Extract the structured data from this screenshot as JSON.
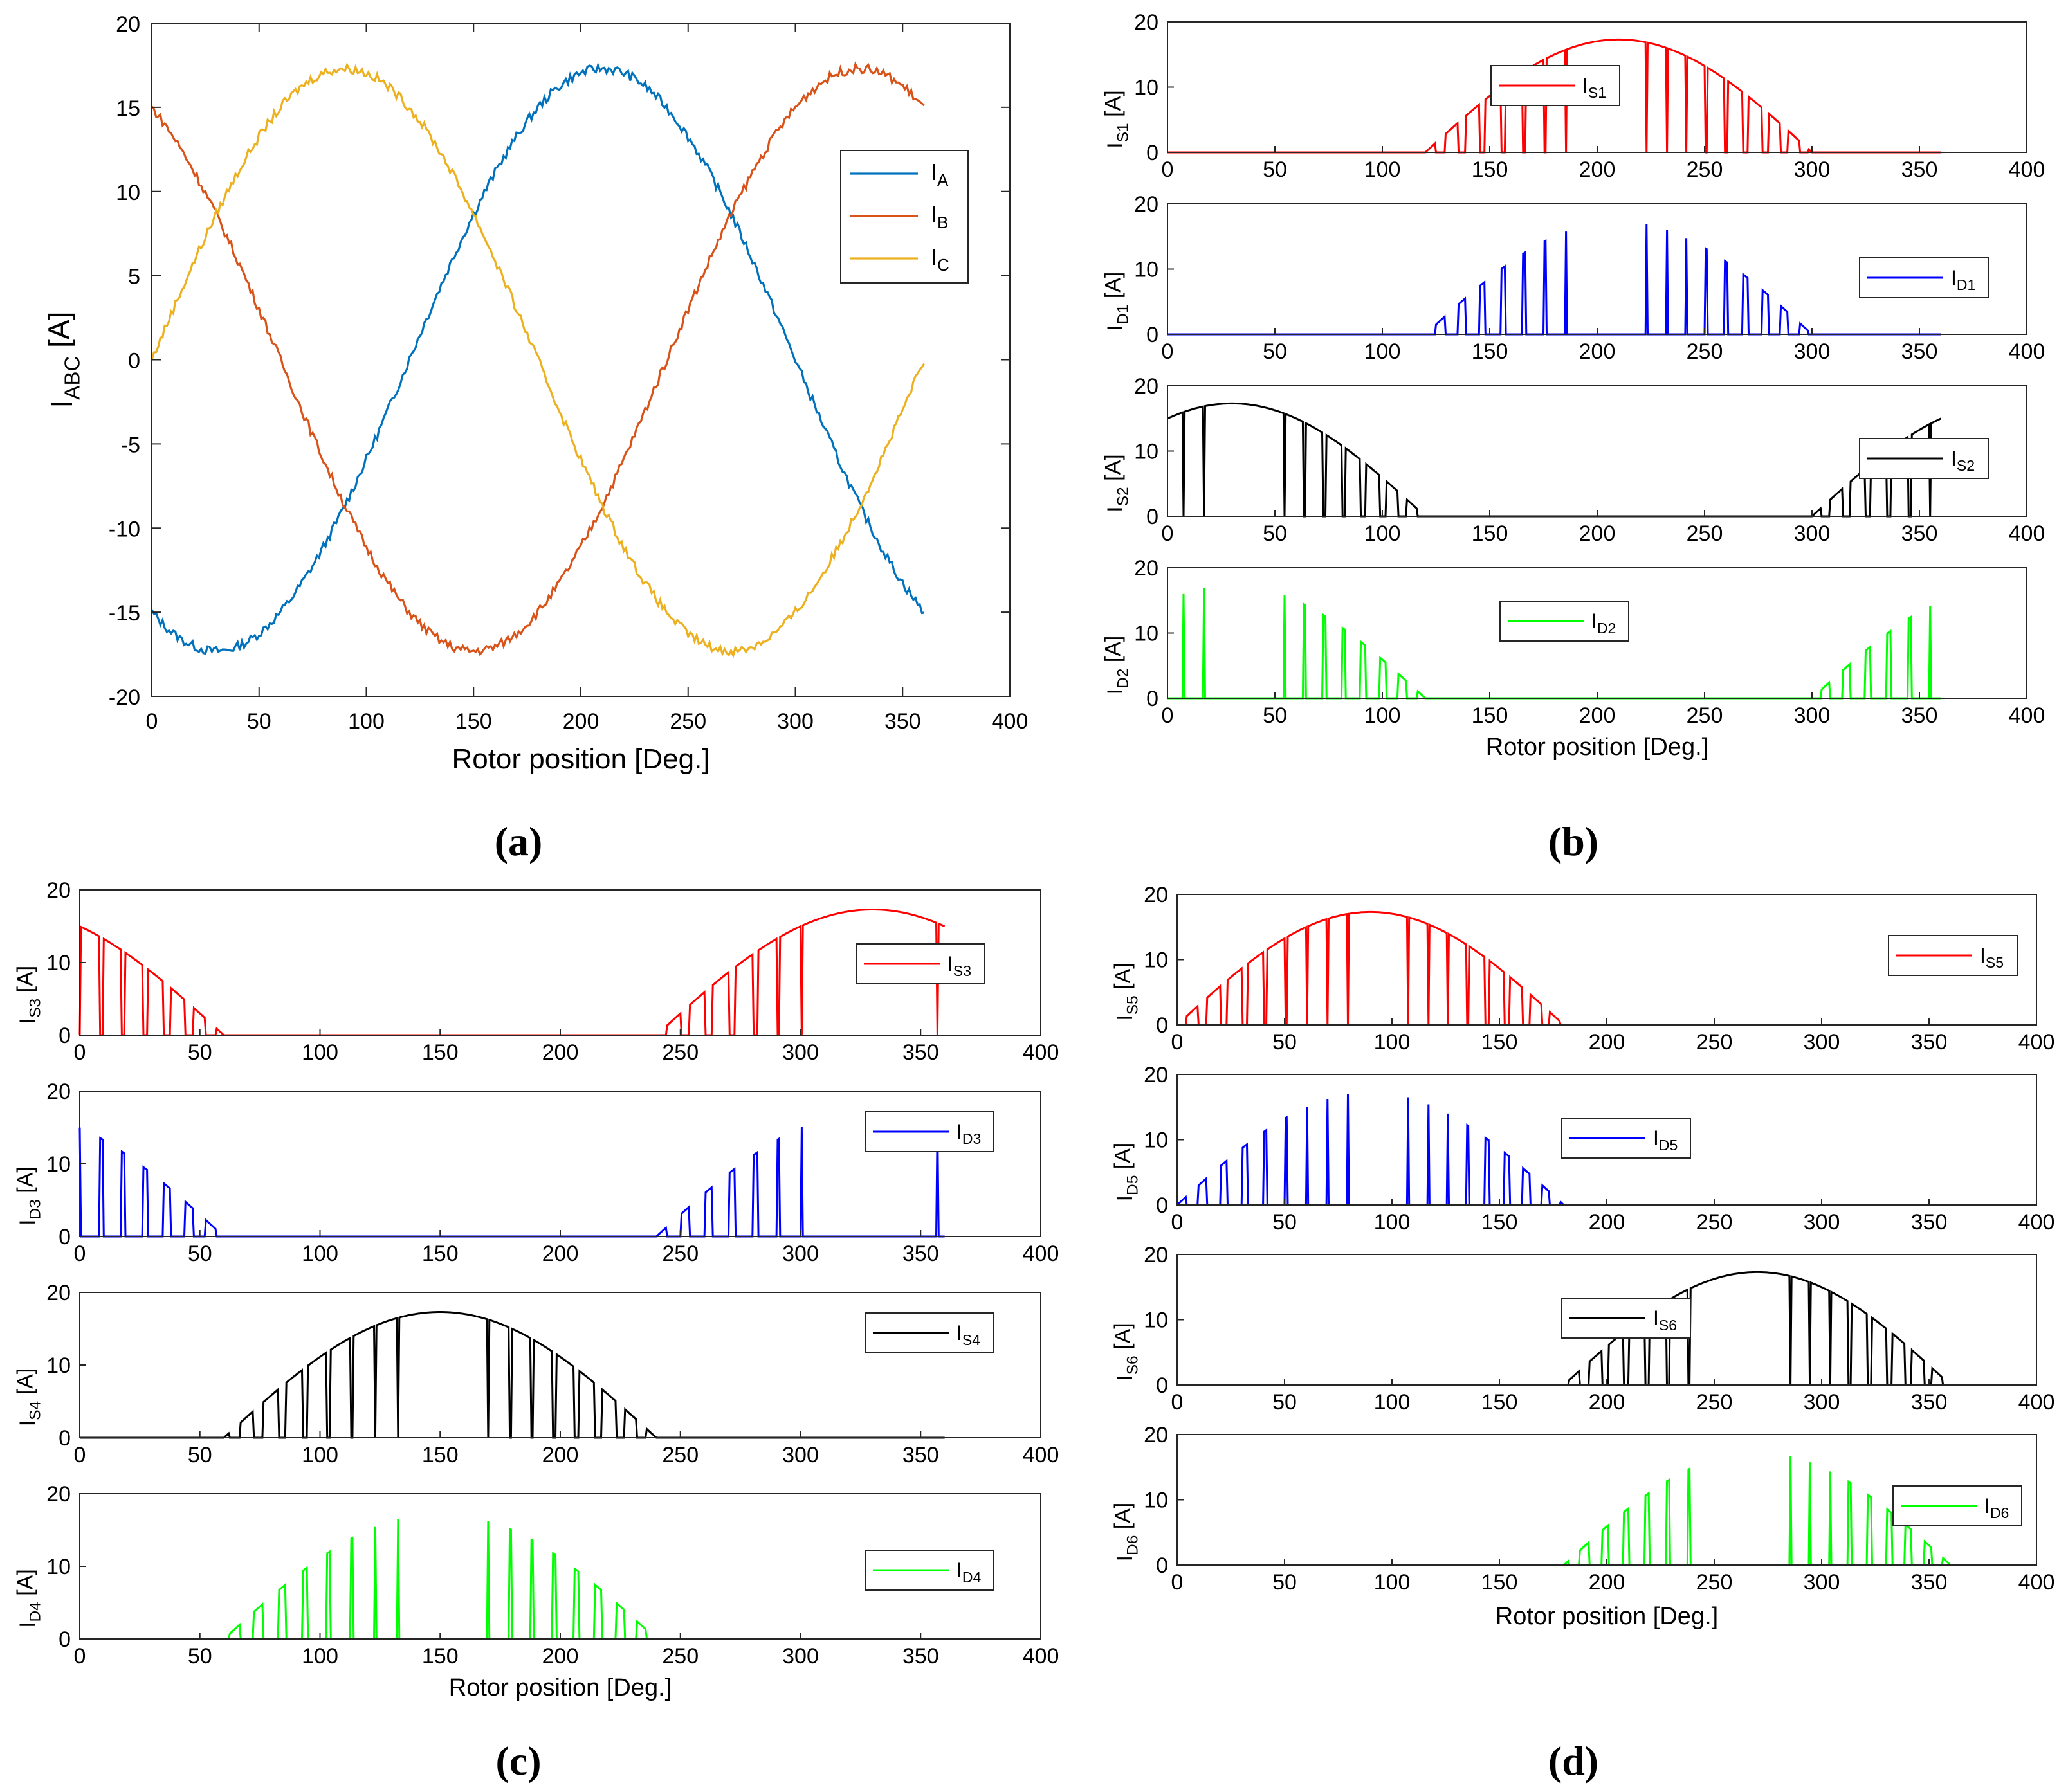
{
  "figure": {
    "captions": [
      "(a)",
      "(b)",
      "(c)",
      "(d)"
    ]
  },
  "colors": {
    "A": "#0072BD",
    "B": "#D95319",
    "C": "#EDB120",
    "S_odd": "#FF0000",
    "D_blue": "#0000FF",
    "S_even": "#000000",
    "D_green": "#00FF00"
  },
  "chart_data": [
    {
      "panel": "a",
      "type": "line",
      "title": "",
      "xlabel": "Rotor position [Deg.]",
      "ylabel": "I_ABC [A]",
      "ylabel_main": "I",
      "ylabel_sub": "ABC",
      "ylabel_unit": " [A]",
      "xlim": [
        0,
        400
      ],
      "ylim": [
        -20,
        20
      ],
      "xticks": [
        0,
        50,
        100,
        150,
        200,
        250,
        300,
        350,
        400
      ],
      "yticks": [
        -20,
        -15,
        -10,
        -5,
        0,
        5,
        10,
        15,
        20
      ],
      "xtick_labels": [
        "0",
        "50",
        "100",
        "150",
        "200",
        "250",
        "300",
        "350",
        "400"
      ],
      "ytick_labels": [
        "-20",
        "-15",
        "-10",
        "-5",
        "0",
        "5",
        "10",
        "15",
        "20"
      ],
      "legend_position": "right",
      "series": [
        {
          "name": "I_A",
          "sym": "I",
          "sub": "A",
          "color": "#0072BD",
          "amplitude": 17.3,
          "phase_deg": 210,
          "x_end": 360
        },
        {
          "name": "I_B",
          "sym": "I",
          "sub": "B",
          "color": "#D95319",
          "amplitude": 17.3,
          "phase_deg": 330,
          "x_end": 360
        },
        {
          "name": "I_C",
          "sym": "I",
          "sub": "C",
          "color": "#EDB120",
          "amplitude": 17.3,
          "phase_deg": 90,
          "x_end": 360
        }
      ]
    },
    {
      "panel": "b",
      "type": "line",
      "xlabel": "Rotor position [Deg.]",
      "xlim": [
        0,
        400
      ],
      "ylim": [
        0,
        20
      ],
      "xticks": [
        0,
        50,
        100,
        150,
        200,
        250,
        300,
        350,
        400
      ],
      "yticks": [
        0,
        10,
        20
      ],
      "xtick_labels": [
        "0",
        "50",
        "100",
        "150",
        "200",
        "250",
        "300",
        "350",
        "400"
      ],
      "ytick_labels": [
        "0",
        "10",
        "20"
      ],
      "subplots": [
        {
          "name": "I_S1",
          "sym": "I",
          "sub": "S1",
          "ylabel": "I_S1 [A]",
          "color": "#FF0000",
          "kind": "S",
          "phase_deg": 210,
          "legend_position": "top-center"
        },
        {
          "name": "I_D1",
          "sym": "I",
          "sub": "D1",
          "ylabel": "I_D1 [A]",
          "color": "#0000FF",
          "kind": "D",
          "phase_deg": 210,
          "legend_position": "top-right"
        },
        {
          "name": "I_S2",
          "sym": "I",
          "sub": "S2",
          "ylabel": "I_S2 [A]",
          "color": "#000000",
          "kind": "S",
          "phase_deg": 30,
          "legend_position": "right"
        },
        {
          "name": "I_D2",
          "sym": "I",
          "sub": "D2",
          "ylabel": "I_D2 [A]",
          "color": "#00FF00",
          "kind": "D",
          "phase_deg": 30,
          "legend_position": "top-center"
        }
      ]
    },
    {
      "panel": "c",
      "type": "line",
      "xlabel": "Rotor position [Deg.]",
      "xlim": [
        0,
        400
      ],
      "ylim": [
        0,
        20
      ],
      "xticks": [
        0,
        50,
        100,
        150,
        200,
        250,
        300,
        350,
        400
      ],
      "yticks": [
        0,
        10,
        20
      ],
      "xtick_labels": [
        "0",
        "50",
        "100",
        "150",
        "200",
        "250",
        "300",
        "350",
        "400"
      ],
      "ytick_labels": [
        "0",
        "10",
        "20"
      ],
      "subplots": [
        {
          "name": "I_S3",
          "sym": "I",
          "sub": "S3",
          "ylabel": "I_S3 [A]",
          "color": "#FF0000",
          "kind": "S",
          "phase_deg": 330,
          "legend_position": "right"
        },
        {
          "name": "I_D3",
          "sym": "I",
          "sub": "D3",
          "ylabel": "I_D3 [A]",
          "color": "#0000FF",
          "kind": "D",
          "phase_deg": 330,
          "legend_position": "top-right"
        },
        {
          "name": "I_S4",
          "sym": "I",
          "sub": "S4",
          "ylabel": "I_S4 [A]",
          "color": "#000000",
          "kind": "S",
          "phase_deg": 150,
          "legend_position": "top-right"
        },
        {
          "name": "I_D4",
          "sym": "I",
          "sub": "D4",
          "ylabel": "I_D4 [A]",
          "color": "#00FF00",
          "kind": "D",
          "phase_deg": 150,
          "legend_position": "right"
        }
      ]
    },
    {
      "panel": "d",
      "type": "line",
      "xlabel": "Rotor position [Deg.]",
      "xlim": [
        0,
        400
      ],
      "ylim": [
        0,
        20
      ],
      "xticks": [
        0,
        50,
        100,
        150,
        200,
        250,
        300,
        350,
        400
      ],
      "yticks": [
        0,
        10,
        20
      ],
      "xtick_labels": [
        "0",
        "50",
        "100",
        "150",
        "200",
        "250",
        "300",
        "350",
        "400"
      ],
      "ytick_labels": [
        "0",
        "10",
        "20"
      ],
      "subplots": [
        {
          "name": "I_S5",
          "sym": "I",
          "sub": "S5",
          "ylabel": "I_S5 [A]",
          "color": "#FF0000",
          "kind": "S",
          "phase_deg": 90,
          "legend_position": "top-right"
        },
        {
          "name": "I_D5",
          "sym": "I",
          "sub": "D5",
          "ylabel": "I_D5 [A]",
          "color": "#0000FF",
          "kind": "D",
          "phase_deg": 90,
          "legend_position": "top-center"
        },
        {
          "name": "I_S6",
          "sym": "I",
          "sub": "S6",
          "ylabel": "I_S6 [A]",
          "color": "#000000",
          "kind": "S",
          "phase_deg": 270,
          "legend_position": "top-center"
        },
        {
          "name": "I_D6",
          "sym": "I",
          "sub": "D6",
          "ylabel": "I_D6 [A]",
          "color": "#00FF00",
          "kind": "D",
          "phase_deg": 270,
          "legend_position": "right"
        }
      ]
    }
  ]
}
